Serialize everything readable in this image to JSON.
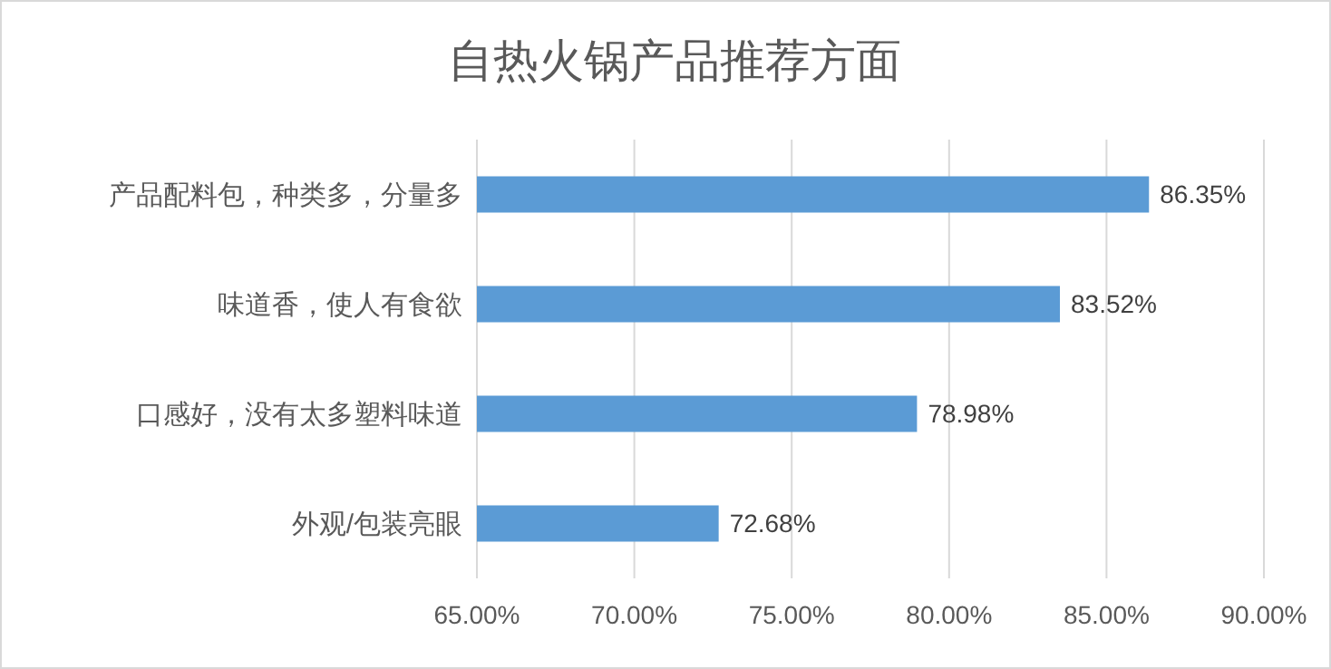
{
  "chart_data": {
    "type": "bar",
    "orientation": "horizontal",
    "title": "自热火锅产品推荐方面",
    "categories": [
      "产品配料包，种类多，分量多",
      "味道香，使人有食欲",
      "口感好，没有太多塑料味道",
      "外观/包装亮眼"
    ],
    "values": [
      86.35,
      83.52,
      78.98,
      72.68
    ],
    "value_labels": [
      "86.35%",
      "83.52%",
      "78.98%",
      "72.68%"
    ],
    "color": "#5b9bd5",
    "xlim": [
      65,
      90
    ],
    "xticks": [
      {
        "value": 65,
        "label": "65.00%"
      },
      {
        "value": 70,
        "label": "70.00%"
      },
      {
        "value": 75,
        "label": "75.00%"
      },
      {
        "value": 80,
        "label": "80.00%"
      },
      {
        "value": 85,
        "label": "85.00%"
      },
      {
        "value": 90,
        "label": "90.00%"
      }
    ],
    "grid": "x"
  }
}
